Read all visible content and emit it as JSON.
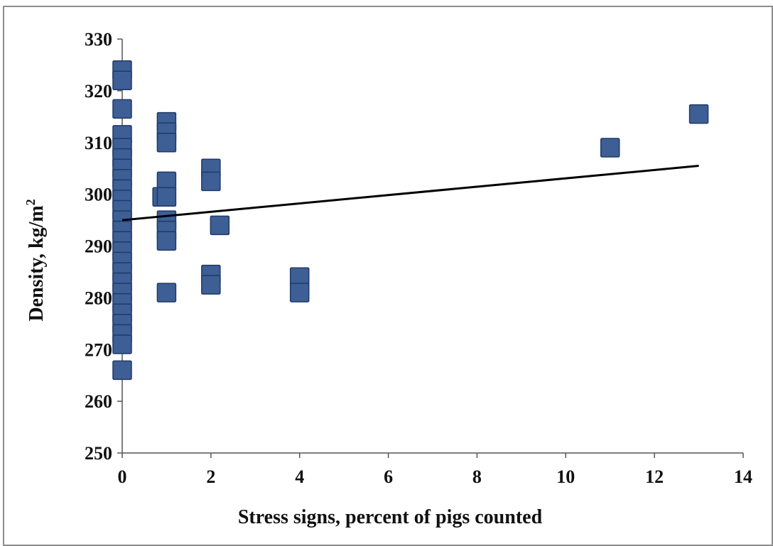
{
  "chart_data": {
    "type": "scatter",
    "xlabel": "Stress signs, percent of pigs counted",
    "ylabel_main": "Density, kg/m",
    "ylabel_sup": "2",
    "xlim": [
      0,
      14
    ],
    "ylim": [
      250,
      330
    ],
    "x_ticks": [
      0,
      2,
      4,
      6,
      8,
      10,
      12,
      14
    ],
    "y_ticks": [
      250,
      260,
      270,
      280,
      290,
      300,
      310,
      320,
      330
    ],
    "grid": false,
    "marker": "square",
    "marker_color": "#3d5f96",
    "marker_edge_color": "#1f3a66",
    "line_color": "#000000",
    "points": [
      {
        "x": 0,
        "y": 324
      },
      {
        "x": 0,
        "y": 322
      },
      {
        "x": 0,
        "y": 316.5
      },
      {
        "x": 0,
        "y": 311.5
      },
      {
        "x": 0,
        "y": 309
      },
      {
        "x": 0,
        "y": 307
      },
      {
        "x": 0,
        "y": 305
      },
      {
        "x": 0,
        "y": 303
      },
      {
        "x": 0,
        "y": 301
      },
      {
        "x": 0,
        "y": 299
      },
      {
        "x": 0,
        "y": 297
      },
      {
        "x": 0,
        "y": 295
      },
      {
        "x": 0,
        "y": 293
      },
      {
        "x": 0,
        "y": 291
      },
      {
        "x": 0,
        "y": 289
      },
      {
        "x": 0,
        "y": 287
      },
      {
        "x": 0,
        "y": 285
      },
      {
        "x": 0,
        "y": 283
      },
      {
        "x": 0,
        "y": 281
      },
      {
        "x": 0,
        "y": 279
      },
      {
        "x": 0,
        "y": 277
      },
      {
        "x": 0,
        "y": 275
      },
      {
        "x": 0,
        "y": 273
      },
      {
        "x": 0,
        "y": 271
      },
      {
        "x": 0,
        "y": 266
      },
      {
        "x": 1,
        "y": 314
      },
      {
        "x": 1,
        "y": 312
      },
      {
        "x": 1,
        "y": 310
      },
      {
        "x": 1,
        "y": 302.5
      },
      {
        "x": 0.9,
        "y": 299.5
      },
      {
        "x": 1,
        "y": 299.5
      },
      {
        "x": 1,
        "y": 295
      },
      {
        "x": 1,
        "y": 293
      },
      {
        "x": 1,
        "y": 291
      },
      {
        "x": 1,
        "y": 281
      },
      {
        "x": 2,
        "y": 305
      },
      {
        "x": 2,
        "y": 302.5
      },
      {
        "x": 2.2,
        "y": 294
      },
      {
        "x": 2,
        "y": 284.5
      },
      {
        "x": 2,
        "y": 282.5
      },
      {
        "x": 4,
        "y": 284
      },
      {
        "x": 4,
        "y": 281
      },
      {
        "x": 11,
        "y": 309
      },
      {
        "x": 13,
        "y": 315.5
      }
    ],
    "trendline": {
      "x1": 0,
      "y1": 295,
      "x2": 13,
      "y2": 305.5
    }
  }
}
